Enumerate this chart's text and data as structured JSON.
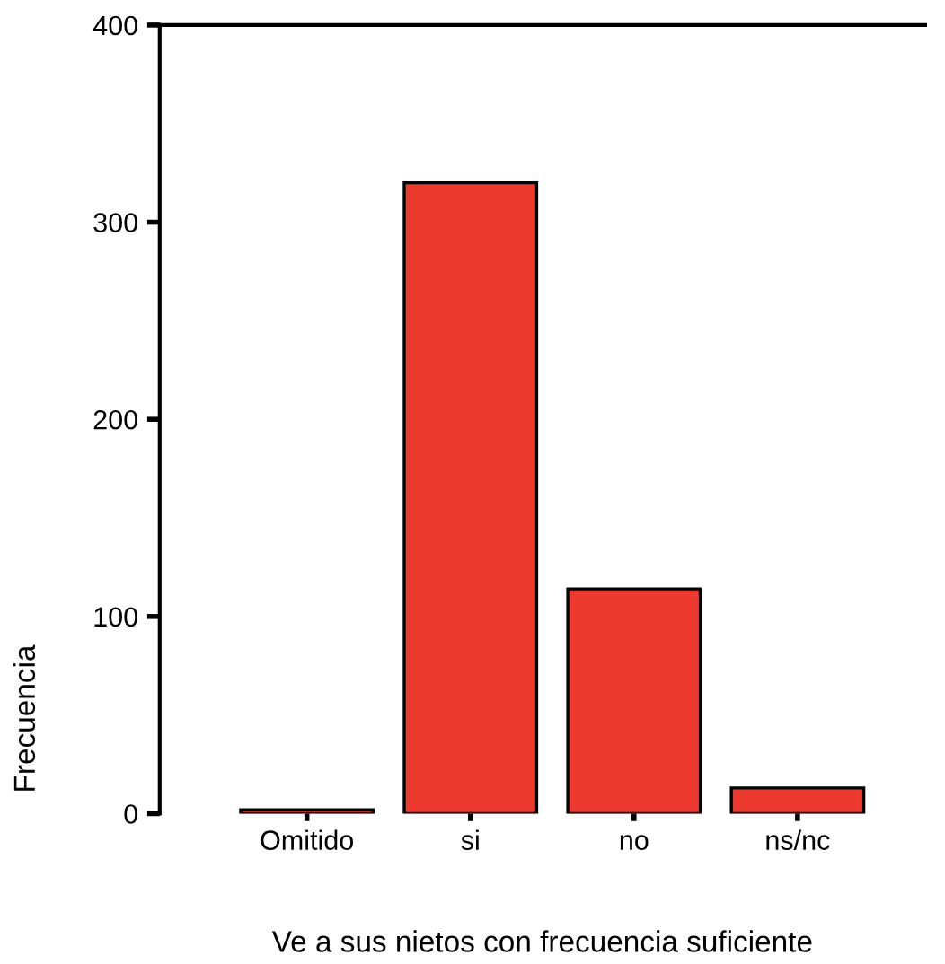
{
  "chart_data": {
    "type": "bar",
    "xlabel": "Ve a sus nietos con frecuencia suficiente",
    "ylabel": "Frecuencia",
    "categories": [
      "Omitido",
      "si",
      "no",
      "ns/nc"
    ],
    "values": [
      2,
      320,
      114,
      13
    ],
    "color": "#ec3a30",
    "ylim": [
      0,
      400
    ],
    "yticks": [
      0,
      100,
      200,
      300,
      400
    ],
    "grid": false,
    "legend": false
  }
}
